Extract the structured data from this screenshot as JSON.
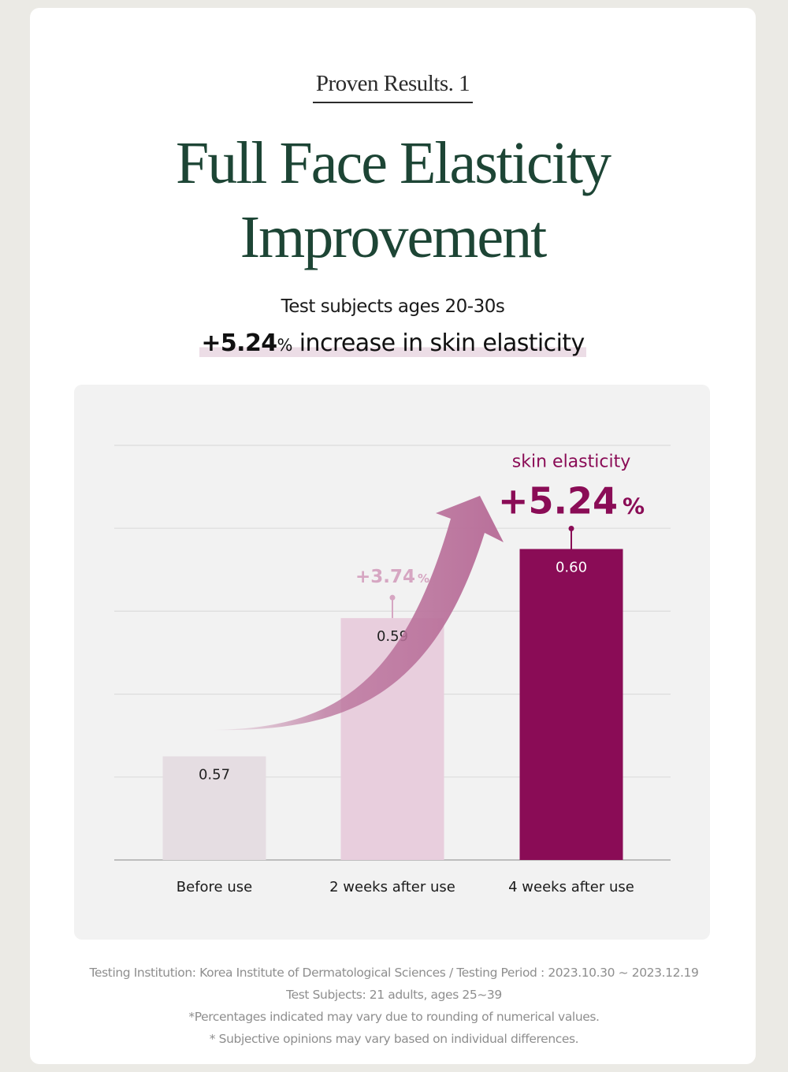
{
  "header": {
    "kicker": "Proven Results. 1",
    "title_line1": "Full Face Elasticity",
    "title_line2": "Improvement",
    "subtitle": "Test subjects ages 20-30s",
    "headline_number": "+5.24",
    "headline_pct": "%",
    "headline_text": " increase in skin elasticity"
  },
  "chart_data": {
    "type": "bar",
    "categories": [
      "Before use",
      "2 weeks after use",
      "4 weeks after use"
    ],
    "values": [
      0.57,
      0.59,
      0.6
    ],
    "value_labels": [
      "0.57",
      "0.59",
      "0.60"
    ],
    "bar_colors": [
      "#e5dde2",
      "#e8cedd",
      "#8a0c56"
    ],
    "value_label_colors": [
      "#222222",
      "#222222",
      "#ffffff"
    ],
    "annotations": [
      {
        "category": "2 weeks after use",
        "number": "+3.74",
        "pct": "%",
        "color": "#d6a6c2"
      },
      {
        "category": "4 weeks after use",
        "title": "skin elasticity",
        "number": "+5.24",
        "pct": "%",
        "color": "#8a0c56"
      }
    ],
    "arrow_color": "#b9709a",
    "grid": true,
    "gridline_count": 6,
    "ylim": [
      0.555,
      0.615
    ]
  },
  "footer": {
    "lines": [
      "Testing Institution: Korea Institute of Dermatological Sciences / Testing Period : 2023.10.30 ~ 2023.12.19",
      "Test Subjects: 21 adults, ages 25~39",
      "*Percentages indicated may vary due to rounding of numerical values.",
      "* Subjective opinions may vary based on individual differences."
    ]
  }
}
